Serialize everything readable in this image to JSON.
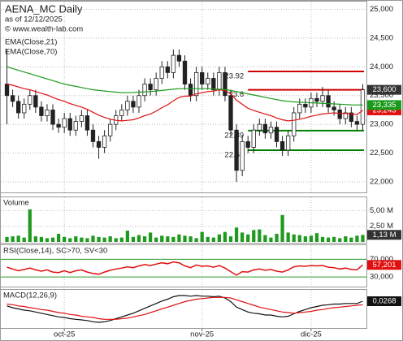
{
  "chart_data": [
    {
      "type": "candlestick",
      "title": "AENA_MC Daily",
      "subtitle": "as of 12/12/2025",
      "source": "© www.wealth-lab.com",
      "open": [
        23.7,
        23.5,
        23.4,
        23.2,
        23.35,
        23.5,
        23.3,
        23.15,
        23.25,
        23,
        22.95,
        23.1,
        22.9,
        23.05,
        23.15,
        22.9,
        22.7,
        22.6,
        22.8,
        23,
        23.15,
        23.25,
        23.4,
        23.3,
        23.5,
        23.7,
        23.6,
        23.8,
        24,
        23.9,
        24.2,
        24.1,
        23.7,
        23.5,
        23.9,
        23.7,
        23.8,
        23.6,
        23.9,
        23.5,
        22.9,
        22.2,
        22.7,
        22.6,
        22.9,
        23,
        22.85,
        22.95,
        22.7,
        22.55,
        22.8,
        23.2,
        23.35,
        23.3,
        23.45,
        23.4,
        23.5,
        23.3,
        23.25,
        23.1,
        23.2,
        23.05,
        23
      ],
      "high": [
        24.3,
        23.6,
        23.5,
        23.45,
        23.6,
        23.6,
        23.4,
        23.35,
        23.35,
        23.1,
        23.2,
        23.2,
        23.15,
        23.25,
        23.25,
        23,
        22.8,
        22.9,
        23.1,
        23.25,
        23.35,
        23.5,
        23.5,
        23.6,
        23.8,
        23.8,
        23.9,
        24.1,
        24.1,
        24.3,
        24.3,
        24.2,
        23.8,
        24,
        24,
        23.9,
        23.9,
        24,
        24,
        23.6,
        23,
        22.8,
        22.8,
        23,
        23.1,
        23.1,
        23.05,
        23.05,
        22.8,
        22.9,
        23.3,
        23.45,
        23.45,
        23.55,
        23.55,
        23.65,
        23.6,
        23.4,
        23.35,
        23.3,
        23.3,
        23.15,
        23.7
      ],
      "low": [
        23,
        23.3,
        23.1,
        23.1,
        23.25,
        23.2,
        23.05,
        23.05,
        22.9,
        22.85,
        22.85,
        22.8,
        22.8,
        22.95,
        22.8,
        22.6,
        22.4,
        22.5,
        22.7,
        22.9,
        23.05,
        23.15,
        23.2,
        23.2,
        23.4,
        23.5,
        23.5,
        23.7,
        23.8,
        23.8,
        24,
        23.6,
        23.4,
        23.4,
        23.6,
        23.6,
        23.5,
        23.5,
        23.4,
        22.8,
        22,
        22.1,
        22.5,
        22.5,
        22.8,
        22.75,
        22.75,
        22.6,
        22.45,
        22.45,
        22.7,
        23.1,
        23.2,
        23.2,
        23.3,
        23.3,
        23.2,
        23.15,
        23,
        23,
        22.95,
        22.9,
        22.9
      ],
      "close": [
        23.5,
        23.4,
        23.2,
        23.35,
        23.5,
        23.3,
        23.15,
        23.25,
        23,
        22.95,
        23.1,
        22.9,
        23.05,
        23.15,
        22.9,
        22.7,
        22.6,
        22.8,
        23,
        23.15,
        23.25,
        23.4,
        23.3,
        23.5,
        23.7,
        23.6,
        23.8,
        24,
        23.9,
        24.2,
        24.1,
        23.7,
        23.5,
        23.9,
        23.7,
        23.8,
        23.6,
        23.9,
        23.5,
        22.9,
        22.2,
        22.7,
        22.6,
        22.9,
        23,
        22.85,
        22.95,
        22.7,
        22.55,
        22.8,
        23.2,
        23.35,
        23.3,
        23.45,
        23.4,
        23.5,
        23.3,
        23.25,
        23.1,
        23.2,
        23.05,
        23,
        23.6
      ],
      "last_label": "23,600",
      "series": [
        {
          "name": "EMA(Close,21)",
          "color": "#e01010",
          "last_label": "23,243",
          "values": [
            23.7,
            23.68,
            23.65,
            23.62,
            23.6,
            23.57,
            23.54,
            23.51,
            23.47,
            23.43,
            23.4,
            23.36,
            23.33,
            23.3,
            23.26,
            23.21,
            23.16,
            23.12,
            23.09,
            23.07,
            23.06,
            23.07,
            23.08,
            23.11,
            23.15,
            23.18,
            23.23,
            23.29,
            23.34,
            23.41,
            23.47,
            23.49,
            23.49,
            23.53,
            23.55,
            23.57,
            23.58,
            23.6,
            23.59,
            23.53,
            23.42,
            23.35,
            23.28,
            23.24,
            23.21,
            23.18,
            23.15,
            23.11,
            23.08,
            23.06,
            23.07,
            23.09,
            23.11,
            23.14,
            23.16,
            23.18,
            23.19,
            23.2,
            23.19,
            23.19,
            23.18,
            23.17,
            23.243
          ]
        },
        {
          "name": "EMA(Close,70)",
          "color": "#1a9a1a",
          "last_label": "23,335",
          "values": [
            24,
            23.97,
            23.94,
            23.91,
            23.88,
            23.85,
            23.82,
            23.79,
            23.76,
            23.73,
            23.7,
            23.68,
            23.66,
            23.64,
            23.62,
            23.6,
            23.59,
            23.58,
            23.57,
            23.56,
            23.55,
            23.55,
            23.555,
            23.56,
            23.565,
            23.57,
            23.58,
            23.59,
            23.6,
            23.61,
            23.62,
            23.62,
            23.62,
            23.62,
            23.62,
            23.62,
            23.615,
            23.61,
            23.605,
            23.59,
            23.57,
            23.55,
            23.53,
            23.51,
            23.49,
            23.47,
            23.45,
            23.43,
            23.41,
            23.4,
            23.39,
            23.385,
            23.38,
            23.375,
            23.37,
            23.365,
            23.36,
            23.355,
            23.35,
            23.345,
            23.34,
            23.338,
            23.335
          ]
        }
      ],
      "levels": [
        {
          "value": 23.92,
          "color": "#d00000"
        },
        {
          "value": 23.6,
          "color": "#d00000"
        },
        {
          "value": 22.89,
          "color": "#008000"
        },
        {
          "value": 22.55,
          "color": "#008000"
        }
      ],
      "ylim": [
        21.83,
        25.12
      ],
      "yticks": [
        {
          "value": 22,
          "label": "22,000"
        },
        {
          "value": 22.5,
          "label": "22,500"
        },
        {
          "value": 23,
          "label": "23,000"
        },
        {
          "value": 23.5,
          "label": "23,500"
        },
        {
          "value": 24,
          "label": "24,000"
        },
        {
          "value": 24.5,
          "label": "24,500"
        },
        {
          "value": 25,
          "label": "25,000"
        }
      ]
    },
    {
      "type": "bar",
      "title": "Volume",
      "color": "#1e9a1e",
      "last_label": "1,13 M",
      "values": [
        0.8,
        0.9,
        1.0,
        0.7,
        5.2,
        0.9,
        0.8,
        0.6,
        0.7,
        1.3,
        0.8,
        0.6,
        0.9,
        0.7,
        0.6,
        1.0,
        0.8,
        0.7,
        0.9,
        0.6,
        0.7,
        1.8,
        0.8,
        1.1,
        0.9,
        1.5,
        0.7,
        1.0,
        0.9,
        0.8,
        1.2,
        1.0,
        0.9,
        0.6,
        1.6,
        0.8,
        0.7,
        1.2,
        1.6,
        0.9,
        2.3,
        1.5,
        1.2,
        1.9,
        2.0,
        1.1,
        0.7,
        1.3,
        4.3,
        1.5,
        1.2,
        1.1,
        0.9,
        1.0,
        1.4,
        0.8,
        0.7,
        0.8,
        0.6,
        0.9,
        0.7,
        1.0,
        1.13
      ],
      "ylim": [
        0,
        7
      ],
      "yticks": [
        {
          "value": 2.5,
          "label": "2,50 M"
        },
        {
          "value": 5,
          "label": "5,00 M"
        }
      ]
    },
    {
      "type": "line",
      "title": "RSI(Close,14), SC>70, SV<30",
      "color": "#e01010",
      "last_label": "57,201",
      "tick_color": "#2a9a2a",
      "values": [
        52,
        48,
        44,
        47,
        50,
        46,
        43,
        46,
        41,
        40,
        44,
        40,
        44,
        46,
        41,
        38,
        36,
        41,
        45,
        48,
        50,
        53,
        51,
        55,
        58,
        56,
        59,
        62,
        60,
        64,
        62,
        55,
        51,
        57,
        54,
        55,
        52,
        56,
        50,
        42,
        34,
        42,
        41,
        46,
        48,
        45,
        47,
        43,
        41,
        46,
        53,
        55,
        54,
        56,
        55,
        56,
        52,
        51,
        48,
        50,
        47,
        46,
        57.201
      ],
      "ylim": [
        10,
        100
      ],
      "yticks": [
        {
          "value": 30,
          "label": "30,000"
        },
        {
          "value": 70,
          "label": "70,000"
        }
      ]
    },
    {
      "type": "line",
      "title": "MACD(12,26,9)",
      "series": [
        {
          "color": "#111111",
          "last_label": "0,0268",
          "values": [
            -0.05,
            -0.08,
            -0.1,
            -0.12,
            -0.13,
            -0.15,
            -0.17,
            -0.19,
            -0.21,
            -0.23,
            -0.24,
            -0.26,
            -0.27,
            -0.28,
            -0.29,
            -0.31,
            -0.32,
            -0.31,
            -0.29,
            -0.26,
            -0.23,
            -0.2,
            -0.17,
            -0.13,
            -0.09,
            -0.05,
            -0.01,
            0.03,
            0.06,
            0.1,
            0.12,
            0.12,
            0.11,
            0.12,
            0.11,
            0.11,
            0.1,
            0.11,
            0.08,
            0.02,
            -0.07,
            -0.11,
            -0.15,
            -0.17,
            -0.18,
            -0.2,
            -0.2,
            -0.22,
            -0.23,
            -0.22,
            -0.18,
            -0.14,
            -0.11,
            -0.08,
            -0.06,
            -0.04,
            -0.03,
            -0.02,
            -0.02,
            -0.01,
            -0.01,
            -0.01,
            0.0268
          ]
        },
        {
          "color": "#e01010",
          "values": [
            -0.02,
            -0.03,
            -0.05,
            -0.06,
            -0.08,
            -0.09,
            -0.11,
            -0.12,
            -0.14,
            -0.16,
            -0.17,
            -0.19,
            -0.2,
            -0.22,
            -0.23,
            -0.24,
            -0.26,
            -0.27,
            -0.27,
            -0.27,
            -0.26,
            -0.25,
            -0.23,
            -0.21,
            -0.19,
            -0.16,
            -0.13,
            -0.1,
            -0.07,
            -0.04,
            -0.01,
            0.02,
            0.04,
            0.06,
            0.07,
            0.08,
            0.09,
            0.09,
            0.09,
            0.08,
            0.05,
            0.02,
            -0.01,
            -0.04,
            -0.07,
            -0.09,
            -0.11,
            -0.13,
            -0.15,
            -0.16,
            -0.17,
            -0.16,
            -0.15,
            -0.14,
            -0.12,
            -0.11,
            -0.09,
            -0.08,
            -0.07,
            -0.06,
            -0.05,
            -0.04,
            -0.03
          ]
        }
      ],
      "categories": [
        null,
        null,
        null,
        null,
        null,
        null,
        null,
        null,
        null,
        null,
        "oct-25",
        null,
        null,
        null,
        null,
        null,
        null,
        null,
        null,
        null,
        null,
        null,
        null,
        null,
        null,
        null,
        null,
        null,
        null,
        null,
        null,
        null,
        null,
        null,
        "nov-25",
        null,
        null,
        null,
        null,
        null,
        null,
        null,
        null,
        null,
        null,
        null,
        null,
        null,
        null,
        null,
        null,
        null,
        null,
        "dic-25",
        null,
        null,
        null,
        null,
        null,
        null,
        null,
        null,
        null
      ],
      "ylim": [
        -0.4,
        0.2
      ]
    }
  ]
}
